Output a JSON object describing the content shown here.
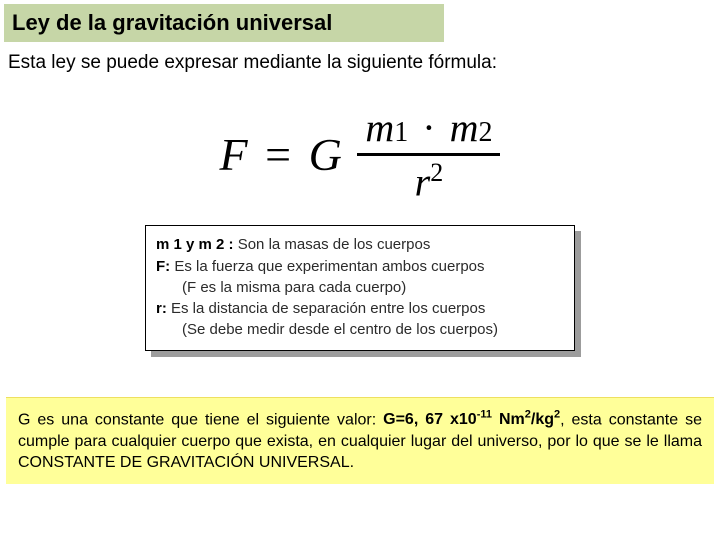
{
  "title": "Ley de la gravitación universal",
  "subtitle": "Esta ley se puede expresar mediante la siguiente fórmula:",
  "formula": {
    "F": "F",
    "eq": "=",
    "G": "G",
    "m1": "m",
    "m1sub": "1",
    "dot": "·",
    "m2": "m",
    "m2sub": "2",
    "r": "r",
    "r_exp": "2"
  },
  "defs": {
    "m_label": "m 1 y m 2 :",
    "m_text": " Son la masas de los cuerpos",
    "F_label": "F:",
    "F_text": " Es la fuerza que experimentan ambos cuerpos",
    "F_note": "(F es la misma para cada cuerpo)",
    "r_label": "r:",
    "r_text": " Es la distancia de separación entre los cuerpos",
    "r_note": "(Se debe medir desde el centro de los cuerpos)"
  },
  "footer": {
    "pre": "G es una constante que tiene el siguiente valor: ",
    "const_main": "G=6, 67 x10",
    "const_exp": "-11",
    "const_unit1": " Nm",
    "const_unit1_exp": "2",
    "const_unit2": "/kg",
    "const_unit2_exp": "2",
    "post": ", esta constante se cumple para cualquier cuerpo que exista, en cualquier lugar del universo, por lo que se le llama CONSTANTE DE GRAVITACIÓN UNIVERSAL."
  },
  "colors": {
    "title_bg": "#c6d6a7",
    "footer_bg": "#ffff99",
    "shadow": "#9c9c9c",
    "text": "#000000"
  }
}
